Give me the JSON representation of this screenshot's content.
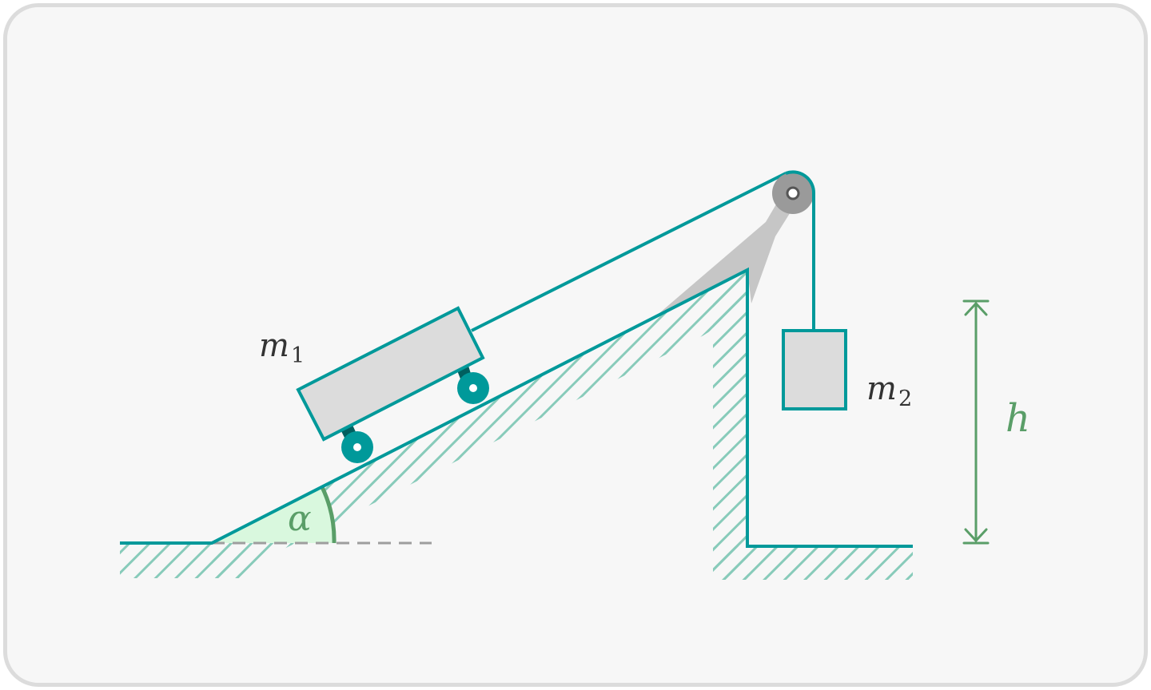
{
  "labels": {
    "mass1": {
      "var": "m",
      "sub": "1"
    },
    "mass2": {
      "var": "m",
      "sub": "2"
    },
    "height": "h",
    "angle": "α"
  },
  "colors": {
    "teal": "#00999a",
    "hatch": "#88cbba",
    "green": "#5a9e68",
    "angle_fill": "#d9f8de",
    "block_fill": "#dcdcdc",
    "pulley": "#9a9a9a",
    "bracket": "#c6c6c6",
    "text": "#333333",
    "background": "#f7f7f7",
    "border": "#dcdcdc"
  }
}
